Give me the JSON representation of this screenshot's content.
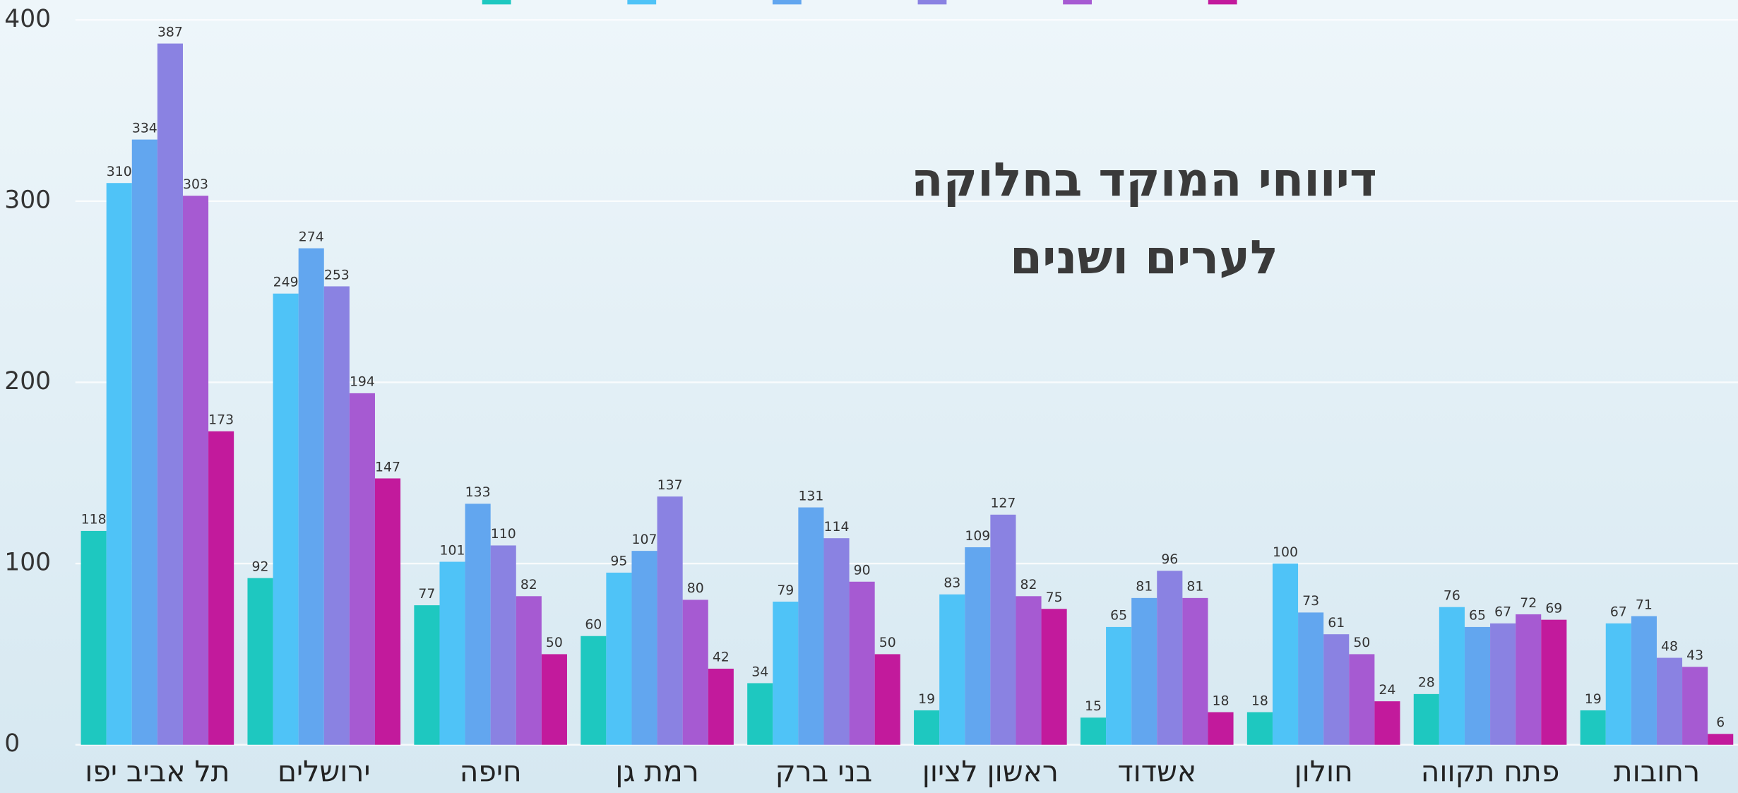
{
  "chart_data": {
    "type": "bar",
    "title": "דיווחי המוקד בחלוקה לערים ושנים",
    "categories": [
      "תל אביב יפו",
      "ירושלים",
      "חיפה",
      "רמת גן",
      "בני ברק",
      "ראשון לציון",
      "אשדוד",
      "חולון",
      "פתח תקווה",
      "רחובות"
    ],
    "series": [
      {
        "color": "#1ec8c0",
        "values": [
          118,
          92,
          77,
          60,
          34,
          19,
          15,
          18,
          28,
          19
        ]
      },
      {
        "color": "#4fc3f7",
        "values": [
          310,
          249,
          101,
          95,
          79,
          83,
          65,
          100,
          76,
          67
        ]
      },
      {
        "color": "#62a6ef",
        "values": [
          334,
          274,
          133,
          107,
          131,
          109,
          81,
          73,
          65,
          71
        ]
      },
      {
        "color": "#8a82e2",
        "values": [
          387,
          253,
          110,
          137,
          114,
          127,
          96,
          61,
          67,
          48
        ]
      },
      {
        "color": "#a65ad2",
        "values": [
          303,
          194,
          82,
          80,
          90,
          82,
          81,
          50,
          72,
          43
        ]
      },
      {
        "color": "#c21a9c",
        "values": [
          173,
          147,
          50,
          42,
          50,
          75,
          18,
          24,
          69,
          6
        ]
      }
    ],
    "ylim": [
      0,
      400
    ],
    "yticks": [
      0,
      100,
      200,
      300,
      400
    ],
    "grid": true
  }
}
